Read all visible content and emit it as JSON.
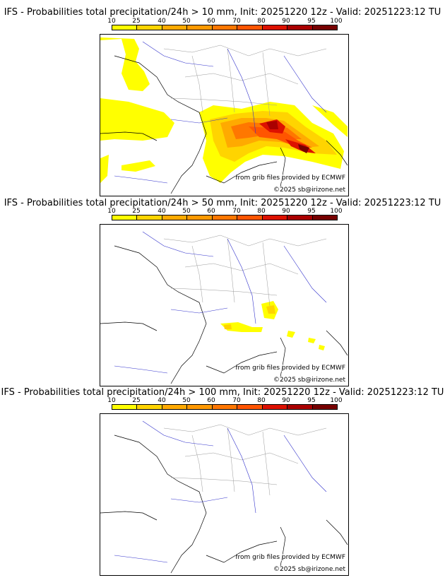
{
  "legend": {
    "ticks": [
      "10",
      "25",
      "40",
      "50",
      "60",
      "70",
      "80",
      "90",
      "95",
      "100"
    ],
    "colors": [
      "#ffff00",
      "#ffd400",
      "#ffaa00",
      "#ff9900",
      "#ff7700",
      "#ff5500",
      "#dd1100",
      "#aa0000",
      "#770000"
    ]
  },
  "panels": [
    {
      "title": "IFS - Probabilities total precipitation/24h > 10 mm, Init: 20251220 12z - Valid: 20251223:12 TU",
      "source": "from grib files provided by ECMWF",
      "copyright": "©2025 sb@irizone.net"
    },
    {
      "title": "IFS - Probabilities total precipitation/24h > 50 mm, Init: 20251220 12z - Valid: 20251223:12 TU",
      "source": "from grib files provided by ECMWF",
      "copyright": "©2025 sb@irizone.net"
    },
    {
      "title": "IFS - Probabilities total precipitation/24h > 100 mm, Init: 20251220 12z - Valid: 20251223:12 TU",
      "source": "from grib files provided by ECMWF",
      "copyright": "©2025 sb@irizone.net"
    }
  ]
}
